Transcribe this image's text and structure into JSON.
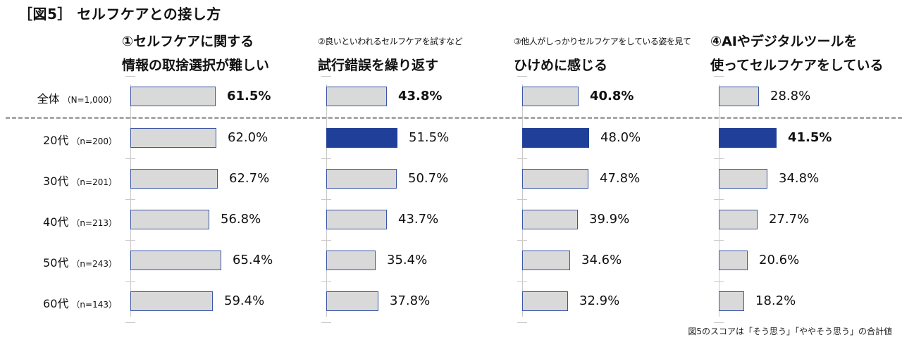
{
  "title": "［図5］ セルフケアとの接し方",
  "note": "図5のスコアは「そう思う」「ややそう思う」の合計値",
  "colors": {
    "bar_default": "#d9d9d9",
    "bar_border": "#3a55a4",
    "bar_highlight": "#203f99",
    "divider": "#a8a8a8"
  },
  "rows": [
    {
      "label": "全体",
      "n": "（N=1,000）"
    },
    {
      "label": "20代",
      "n": "（n=200）"
    },
    {
      "label": "30代",
      "n": "（n=201）"
    },
    {
      "label": "40代",
      "n": "（n=213）"
    },
    {
      "label": "50代",
      "n": "（n=243）"
    },
    {
      "label": "60代",
      "n": "（n=143）"
    }
  ],
  "panels": [
    {
      "line1": "①セルフケアに関する",
      "line1_small": false,
      "line2": "情報の取捨選択が難しい",
      "values": [
        "61.5%",
        "62.0%",
        "62.7%",
        "56.8%",
        "65.4%",
        "59.4%"
      ]
    },
    {
      "line1": "②良いといわれるセルフケアを試すなど",
      "line1_small": true,
      "line2": "試行錯誤を繰り返す",
      "values": [
        "43.8%",
        "51.5%",
        "50.7%",
        "43.7%",
        "35.4%",
        "37.8%"
      ]
    },
    {
      "line1": "③他人がしっかりセルフケアをしている姿を見て",
      "line1_small": true,
      "line2": "ひけめに感じる",
      "values": [
        "40.8%",
        "48.0%",
        "47.8%",
        "39.9%",
        "34.6%",
        "32.9%"
      ]
    },
    {
      "line1": "④AIやデジタルツールを",
      "line1_small": false,
      "line2": "使ってセルフケアをしている",
      "values": [
        "28.8%",
        "41.5%",
        "34.8%",
        "27.7%",
        "20.6%",
        "18.2%"
      ]
    }
  ],
  "chart_data": {
    "type": "bar",
    "orientation": "horizontal",
    "title": "［図5］ セルフケアとの接し方",
    "categories": [
      "全体（N=1,000）",
      "20代（n=200）",
      "30代（n=201）",
      "40代（n=213）",
      "50代（n=243）",
      "60代（n=143）"
    ],
    "series": [
      {
        "name": "①セルフケアに関する情報の取捨選択が難しい",
        "values": [
          61.5,
          62.0,
          62.7,
          56.8,
          65.4,
          59.4
        ],
        "highlight_index": []
      },
      {
        "name": "②良いといわれるセルフケアを試すなど試行錯誤を繰り返す",
        "values": [
          43.8,
          51.5,
          50.7,
          43.7,
          35.4,
          37.8
        ],
        "highlight_index": [
          1
        ]
      },
      {
        "name": "③他人がしっかりセルフケアをしている姿を見てひけめに感じる",
        "values": [
          40.8,
          48.0,
          47.8,
          39.9,
          34.6,
          32.9
        ],
        "highlight_index": [
          1
        ]
      },
      {
        "name": "④AIやデジタルツールを使ってセルフケアをしている",
        "values": [
          28.8,
          41.5,
          34.8,
          27.7,
          20.6,
          18.2
        ],
        "highlight_index": [
          1
        ]
      }
    ],
    "unit": "%",
    "xlabel": "",
    "ylabel": "",
    "grid": false,
    "legend": "none (panel headers)",
    "annotation": "図5のスコアは「そう思う」「ややそう思う」の合計値"
  }
}
